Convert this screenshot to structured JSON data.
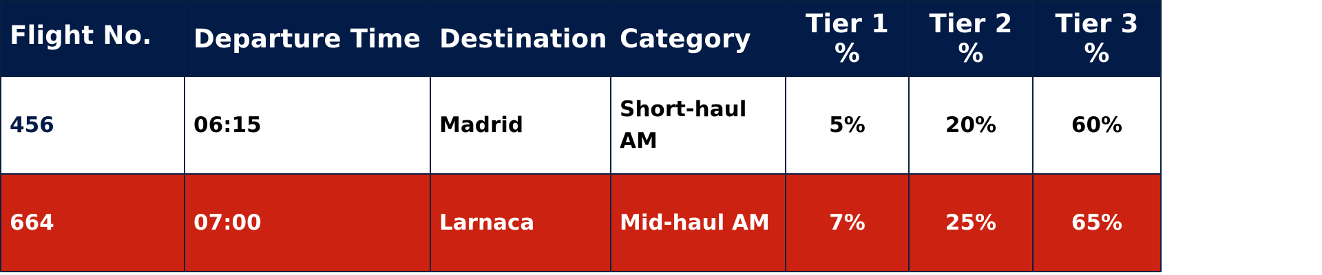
{
  "table": {
    "headers": [
      "Flight No.",
      "Departure Time",
      "Destination",
      "Category",
      "Tier 1 %",
      "Tier 2 %",
      "Tier 3 %"
    ],
    "rows": [
      [
        "456",
        "06:15",
        "Madrid",
        "Short-haul AM",
        "5%",
        "20%",
        "60%"
      ],
      [
        "664",
        "07:00",
        "Larnaca",
        "Mid-haul AM",
        "7%",
        "25%",
        "65%"
      ]
    ]
  },
  "colors": {
    "header_bg": "#031b47",
    "highlight_row_bg": "#cc2211",
    "border": "#0b1e40"
  }
}
